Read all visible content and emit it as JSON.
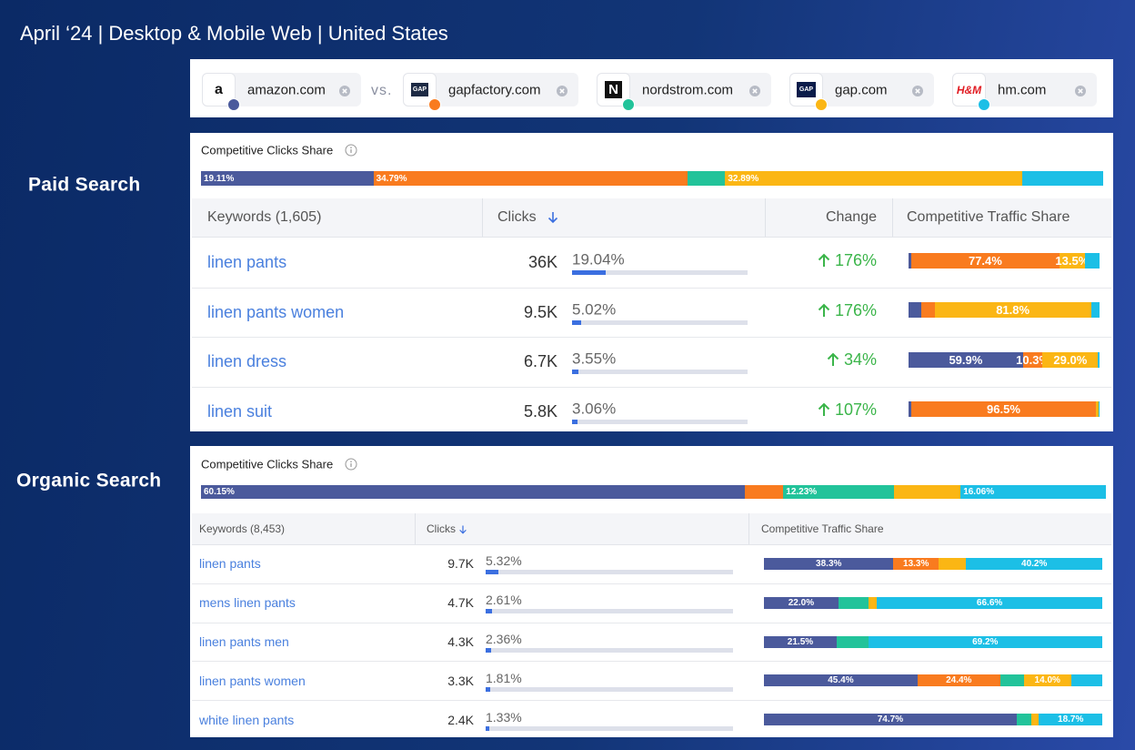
{
  "header": {
    "title": "April ‘24 | Desktop & Mobile Web | United States"
  },
  "vs": "vs.",
  "competitors": [
    {
      "name": "amazon.com",
      "logo": "a",
      "color": "#4b5a9c"
    },
    {
      "name": "gapfactory.com",
      "logo": "GAP",
      "color": "#f97b1f"
    },
    {
      "name": "nordstrom.com",
      "logo": "N",
      "color": "#22c39a"
    },
    {
      "name": "gap.com",
      "logo": "GAP",
      "color": "#fbb614"
    },
    {
      "name": "hm.com",
      "logo": "H&M",
      "color": "#1cbfe6"
    }
  ],
  "sections": [
    {
      "label": "Paid Search",
      "share": {
        "title": "Competitive Clicks Share",
        "values": [
          19.11,
          34.79,
          4.2,
          32.89,
          9.0
        ],
        "value_labels": [
          "19.11%",
          "34.79%",
          null,
          "32.89%",
          null
        ]
      },
      "table": {
        "columns": [
          "Keywords (1,605)",
          "Clicks",
          "Change",
          "Competitive Traffic Share"
        ],
        "rows": [
          {
            "keyword": "linen pants",
            "clicks": "36K",
            "clicks_share": 19.04,
            "clicks_share_label": "19.04%",
            "change": "176%",
            "traffic": {
              "values": [
                1.5,
                77.4,
                0,
                13.5,
                7.6
              ],
              "value_labels": [
                null,
                "77.4%",
                null,
                "13.5%",
                null
              ]
            }
          },
          {
            "keyword": "linen pants women",
            "clicks": "9.5K",
            "clicks_share": 5.02,
            "clicks_share_label": "5.02%",
            "change": "176%",
            "traffic": {
              "values": [
                6.7,
                7,
                0,
                81.8,
                4.5
              ],
              "value_labels": [
                null,
                null,
                null,
                "81.8%",
                null
              ]
            }
          },
          {
            "keyword": "linen dress",
            "clicks": "6.7K",
            "clicks_share": 3.55,
            "clicks_share_label": "3.55%",
            "change": "34%",
            "traffic": {
              "values": [
                59.9,
                10.3,
                0,
                29.0,
                0.8
              ],
              "value_labels": [
                "59.9%",
                "10.3%",
                null,
                "29.0%",
                null
              ]
            }
          },
          {
            "keyword": "linen suit",
            "clicks": "5.8K",
            "clicks_share": 3.06,
            "clicks_share_label": "3.06%",
            "change": "107%",
            "traffic": {
              "values": [
                1.5,
                96.5,
                0,
                1.5,
                0.5
              ],
              "value_labels": [
                null,
                "96.5%",
                null,
                null,
                null
              ]
            }
          }
        ]
      }
    },
    {
      "label": "Organic Search",
      "share": {
        "title": "Competitive Clicks Share",
        "values": [
          60.15,
          4.2,
          12.23,
          7.36,
          16.06
        ],
        "value_labels": [
          "60.15%",
          null,
          "12.23%",
          null,
          "16.06%"
        ]
      },
      "table": {
        "columns": [
          "Keywords (8,453)",
          "Clicks",
          "Competitive Traffic Share"
        ],
        "rows": [
          {
            "keyword": "linen pants",
            "clicks": "9.7K",
            "clicks_share": 5.32,
            "clicks_share_label": "5.32%",
            "traffic": {
              "values": [
                38.3,
                13.3,
                0,
                8.2,
                40.2
              ],
              "value_labels": [
                "38.3%",
                "13.3%",
                null,
                null,
                "40.2%"
              ]
            }
          },
          {
            "keyword": "mens linen pants",
            "clicks": "4.7K",
            "clicks_share": 2.61,
            "clicks_share_label": "2.61%",
            "traffic": {
              "values": [
                22.0,
                0,
                8.9,
                2.5,
                66.6
              ],
              "value_labels": [
                "22.0%",
                null,
                null,
                null,
                "66.6%"
              ]
            }
          },
          {
            "keyword": "linen pants men",
            "clicks": "4.3K",
            "clicks_share": 2.36,
            "clicks_share_label": "2.36%",
            "traffic": {
              "values": [
                21.5,
                0,
                9.3,
                0,
                69.2
              ],
              "value_labels": [
                "21.5%",
                null,
                null,
                null,
                "69.2%"
              ]
            }
          },
          {
            "keyword": "linen pants women",
            "clicks": "3.3K",
            "clicks_share": 1.81,
            "clicks_share_label": "1.81%",
            "traffic": {
              "values": [
                45.4,
                24.4,
                7.0,
                14.0,
                9.2
              ],
              "value_labels": [
                "45.4%",
                "24.4%",
                null,
                "14.0%",
                null
              ]
            }
          },
          {
            "keyword": "white linen pants",
            "clicks": "2.4K",
            "clicks_share": 1.33,
            "clicks_share_label": "1.33%",
            "traffic": {
              "values": [
                74.7,
                0,
                4.3,
                2.3,
                18.7
              ],
              "value_labels": [
                "74.7%",
                null,
                null,
                null,
                "18.7%"
              ]
            }
          }
        ]
      }
    }
  ]
}
